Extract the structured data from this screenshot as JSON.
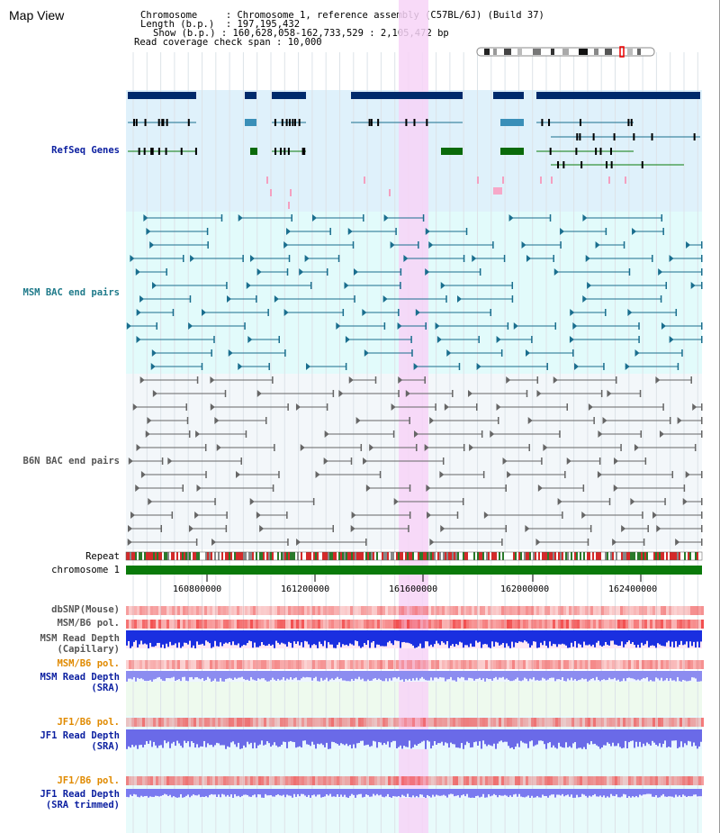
{
  "page": {
    "title": "Map View",
    "info": {
      "chromosome_key": "Chromosome",
      "chromosome_val": "Chromosome 1, reference assembly (C57BL/6J) (Build 37)",
      "length_key": "Length (b.p.)",
      "length_val": "197,195,432",
      "show_key": "Show (b.p.)",
      "show_val": "160,628,058-162,733,529 : 2,105,472 bp",
      "coverage_key": "Read coverage check span",
      "coverage_val": "10,000"
    }
  },
  "tracks": {
    "refseq": "RefSeq Genes",
    "msm_bac": "MSM BAC end pairs",
    "b6n_bac": "B6N BAC end pairs",
    "repeat": "Repeat",
    "chromosome": "chromosome 1",
    "dbsnp": "dbSNP(Mouse)",
    "msm_b6_pol": "MSM/B6 pol.",
    "msm_read_depth_cap_1": "MSM Read Depth",
    "msm_read_depth_cap_2": "(Capillary)",
    "msm_b6_pol2": "MSM/B6 pol.",
    "msm_read_depth_sra_1": "MSM Read Depth",
    "msm_read_depth_sra_2": "(SRA)",
    "jf1_b6_pol": "JF1/B6 pol.",
    "jf1_read_depth_sra_1": "JF1 Read Depth",
    "jf1_read_depth_sra_2": "(SRA)",
    "jf1_b6_pol2": "JF1/B6 pol.",
    "jf1_read_depth_trim_1": "JF1 Read Depth",
    "jf1_read_depth_trim_2": "(SRA trimmed)"
  },
  "axis": {
    "ticks": [
      "160800000",
      "161200000",
      "161600000",
      "162000000",
      "162400000"
    ]
  },
  "colors": {
    "refseq_bg": "#dff1fb",
    "msm_bg": "#e2fbfb",
    "b6n_bg": "#f3f7fa",
    "highlight": "#f7d4f7",
    "chrom_green": "#0a7a0a",
    "navy": "#002a6b",
    "teal": "#1a6e8e",
    "label_navy": "#0b1fa0",
    "label_teal": "#1f7a8a",
    "label_gray": "#555555",
    "label_orange": "#e08a00"
  }
}
